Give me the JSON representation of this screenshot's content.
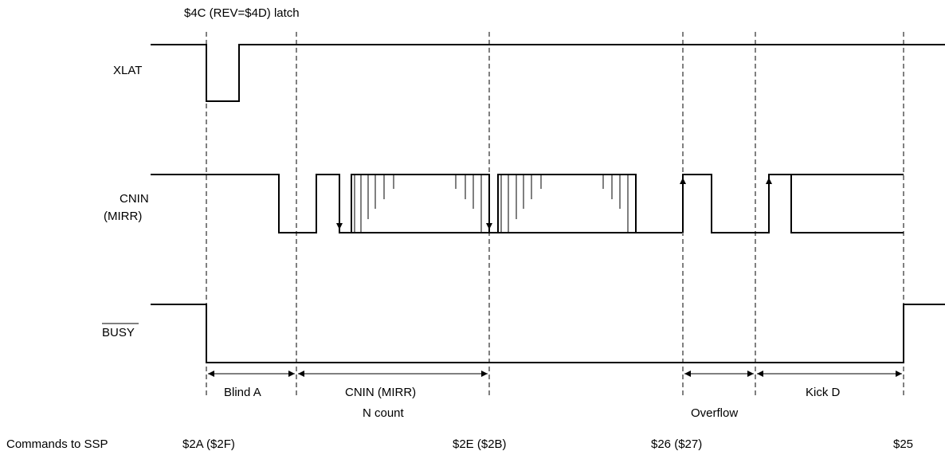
{
  "header_note": "$4C (REV=$4D) latch",
  "signals": {
    "xlat": "XLAT",
    "cnin_line1": "CNIN",
    "cnin_line2": "(MIRR)",
    "busy": "BUSY"
  },
  "intervals": {
    "blind_a": "Blind A",
    "cnin_count_line1": "CNIN (MIRR)",
    "cnin_count_line2": "N count",
    "overflow": "Overflow",
    "kick_d": "Kick D"
  },
  "commands": {
    "label": "Commands to SSP",
    "c1": "$2A ($2F)",
    "c2": "$2E ($2B)",
    "c3": "$26 ($27)",
    "c4": "$25"
  }
}
